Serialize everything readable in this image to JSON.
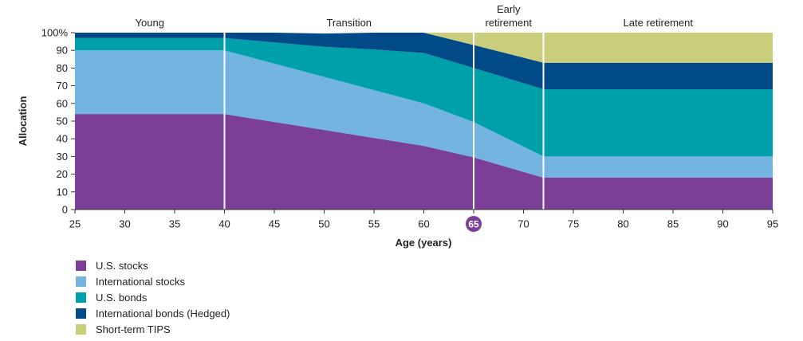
{
  "chart_data": {
    "type": "area",
    "stacked": true,
    "xlabel": "Age (years)",
    "ylabel": "Allocation",
    "xlim": [
      25,
      95
    ],
    "ylim": [
      0,
      100
    ],
    "x_ticks": [
      "25",
      "30",
      "35",
      "40",
      "45",
      "50",
      "55",
      "60",
      "65",
      "70",
      "75",
      "80",
      "85",
      "90",
      "95"
    ],
    "y_ticks": [
      "0",
      "10",
      "20",
      "30",
      "40",
      "50",
      "60",
      "70",
      "80",
      "90",
      "100%"
    ],
    "highlight_tick": "65",
    "x": [
      25,
      40,
      45,
      50,
      55,
      60,
      65,
      72,
      95
    ],
    "series": [
      {
        "name": "U.S. stocks",
        "color": "#7b3f98",
        "values": [
          54,
          54,
          49.5,
          45,
          40.5,
          36,
          29.5,
          18,
          18
        ]
      },
      {
        "name": "International stocks",
        "color": "#74b4e1",
        "values": [
          36,
          36,
          33,
          30,
          27,
          24,
          20,
          12,
          12
        ]
      },
      {
        "name": "U.S. bonds",
        "color": "#00a0ab",
        "values": [
          7,
          7,
          12,
          17,
          23,
          28.5,
          30.5,
          38,
          38
        ]
      },
      {
        "name": "International bonds (Hedged)",
        "color": "#004b87",
        "values": [
          3,
          3,
          5.5,
          7.5,
          9.5,
          11.5,
          13,
          15,
          15
        ]
      },
      {
        "name": "Short-term TIPS",
        "color": "#c8ce7c",
        "values": [
          0,
          0,
          0,
          0,
          0,
          0,
          7,
          17,
          17
        ]
      }
    ],
    "phases": [
      {
        "label": "Young",
        "from": 25,
        "to": 40
      },
      {
        "label": "Transition",
        "from": 40,
        "to": 65
      },
      {
        "label": "Early retirement",
        "lines": [
          "Early",
          "retirement"
        ],
        "from": 65,
        "to": 72
      },
      {
        "label": "Late retirement",
        "from": 72,
        "to": 95
      }
    ],
    "dividers": [
      40,
      65,
      72
    ],
    "legend_position": "bottom-left"
  }
}
